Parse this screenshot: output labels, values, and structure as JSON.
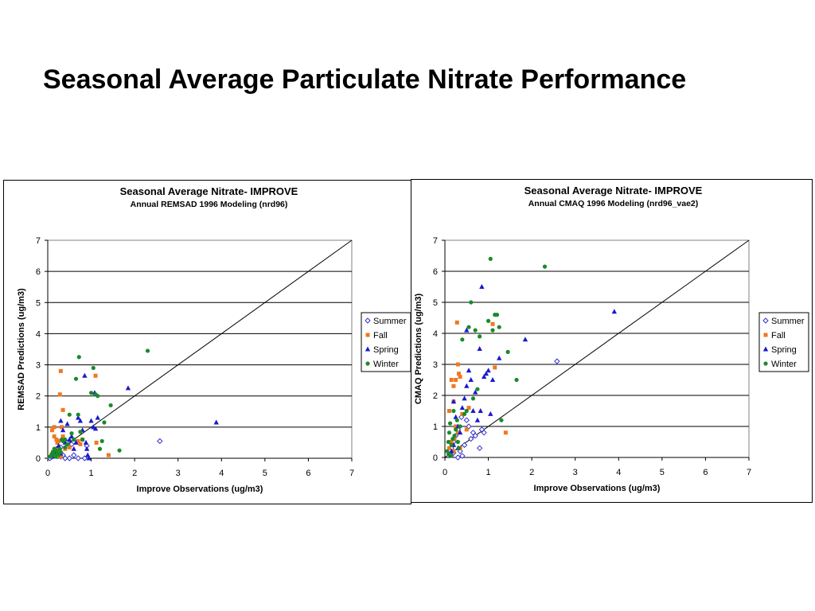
{
  "slide": {
    "title": "Seasonal Average Particulate Nitrate Performance"
  },
  "chart_data": [
    {
      "type": "scatter",
      "title": "Seasonal Average Nitrate- IMPROVE",
      "subtitle": "Annual REMSAD 1996 Modeling (nrd96)",
      "xlabel": "Improve Observations (ug/m3)",
      "ylabel": "REMSAD Predictions (ug/m3)",
      "xlim": [
        0,
        7
      ],
      "ylim": [
        0,
        7
      ],
      "xticks": [
        "0",
        "1",
        "2",
        "3",
        "4",
        "5",
        "6",
        "7"
      ],
      "yticks": [
        "0",
        "1",
        "2",
        "3",
        "4",
        "5",
        "6",
        "7"
      ],
      "grid": "horizontal",
      "legend_position": "right",
      "reference_line": [
        [
          0,
          0
        ],
        [
          7,
          7
        ]
      ],
      "colors": {
        "Summer": "#3333cc",
        "Fall": "#f07820",
        "Spring": "#1a1acc",
        "Winter": "#1a8a2a"
      },
      "series": [
        {
          "name": "Summer",
          "marker": "diamond-open",
          "points": [
            [
              0.05,
              0.0
            ],
            [
              0.1,
              0.05
            ],
            [
              0.15,
              0.1
            ],
            [
              0.2,
              0.15
            ],
            [
              0.25,
              0.2
            ],
            [
              0.3,
              0.05
            ],
            [
              0.35,
              0.1
            ],
            [
              0.4,
              0.0
            ],
            [
              0.5,
              0.0
            ],
            [
              0.6,
              0.1
            ],
            [
              0.7,
              0.0
            ],
            [
              0.85,
              0.0
            ],
            [
              0.9,
              0.4
            ],
            [
              0.3,
              0.35
            ],
            [
              0.45,
              0.5
            ],
            [
              0.55,
              0.45
            ],
            [
              0.2,
              0.3
            ],
            [
              0.12,
              0.08
            ],
            [
              2.58,
              0.55
            ]
          ]
        },
        {
          "name": "Fall",
          "marker": "square",
          "points": [
            [
              0.1,
              0.9
            ],
            [
              0.15,
              1.0
            ],
            [
              0.2,
              0.6
            ],
            [
              0.22,
              0.5
            ],
            [
              0.25,
              0.2
            ],
            [
              0.28,
              2.05
            ],
            [
              0.3,
              2.8
            ],
            [
              0.32,
              1.0
            ],
            [
              0.35,
              1.55
            ],
            [
              0.4,
              0.3
            ],
            [
              0.15,
              0.7
            ],
            [
              0.18,
              0.3
            ],
            [
              0.2,
              0.15
            ],
            [
              0.25,
              0.55
            ],
            [
              0.1,
              0.1
            ],
            [
              0.3,
              0.05
            ],
            [
              0.5,
              0.35
            ],
            [
              0.7,
              0.55
            ],
            [
              0.75,
              0.45
            ],
            [
              0.8,
              0.6
            ],
            [
              1.1,
              2.65
            ],
            [
              1.12,
              0.5
            ],
            [
              1.4,
              0.1
            ],
            [
              0.12,
              0.2
            ],
            [
              0.35,
              0.7
            ]
          ]
        },
        {
          "name": "Spring",
          "marker": "triangle",
          "points": [
            [
              0.3,
              1.2
            ],
            [
              0.35,
              0.9
            ],
            [
              0.4,
              0.5
            ],
            [
              0.45,
              1.1
            ],
            [
              0.5,
              0.6
            ],
            [
              0.55,
              0.7
            ],
            [
              0.6,
              0.3
            ],
            [
              0.65,
              0.5
            ],
            [
              0.7,
              1.3
            ],
            [
              0.75,
              1.2
            ],
            [
              0.8,
              0.9
            ],
            [
              0.85,
              2.65
            ],
            [
              0.88,
              0.5
            ],
            [
              0.9,
              0.3
            ],
            [
              0.92,
              0.1
            ],
            [
              0.95,
              0.0
            ],
            [
              1.0,
              1.2
            ],
            [
              1.05,
              1.0
            ],
            [
              1.08,
              2.1
            ],
            [
              1.1,
              0.95
            ],
            [
              1.15,
              1.3
            ],
            [
              1.85,
              2.25
            ],
            [
              3.88,
              1.15
            ],
            [
              0.25,
              0.4
            ],
            [
              0.2,
              0.2
            ],
            [
              0.3,
              0.15
            ],
            [
              0.15,
              0.05
            ]
          ]
        },
        {
          "name": "Winter",
          "marker": "circle",
          "points": [
            [
              0.05,
              0.05
            ],
            [
              0.08,
              0.1
            ],
            [
              0.1,
              0.15
            ],
            [
              0.12,
              0.2
            ],
            [
              0.15,
              0.1
            ],
            [
              0.18,
              0.05
            ],
            [
              0.2,
              0.25
            ],
            [
              0.22,
              0.15
            ],
            [
              0.25,
              0.1
            ],
            [
              0.28,
              0.3
            ],
            [
              0.3,
              0.2
            ],
            [
              0.32,
              0.6
            ],
            [
              0.35,
              0.55
            ],
            [
              0.4,
              0.6
            ],
            [
              0.45,
              0.45
            ],
            [
              0.5,
              1.4
            ],
            [
              0.55,
              0.8
            ],
            [
              0.6,
              0.6
            ],
            [
              0.65,
              2.55
            ],
            [
              0.7,
              1.4
            ],
            [
              0.72,
              3.25
            ],
            [
              0.75,
              0.85
            ],
            [
              0.8,
              0.6
            ],
            [
              1.0,
              2.1
            ],
            [
              1.05,
              2.9
            ],
            [
              1.1,
              2.05
            ],
            [
              1.15,
              2.0
            ],
            [
              1.2,
              0.3
            ],
            [
              1.25,
              0.55
            ],
            [
              1.3,
              1.15
            ],
            [
              1.45,
              1.7
            ],
            [
              1.65,
              0.25
            ],
            [
              2.3,
              3.45
            ],
            [
              0.15,
              0.3
            ],
            [
              0.4,
              0.35
            ]
          ]
        }
      ]
    },
    {
      "type": "scatter",
      "title": "Seasonal Average Nitrate- IMPROVE",
      "subtitle": "Annual CMAQ 1996 Modeling (nrd96_vae2)",
      "xlabel": "Improve Observations (ug/m3)",
      "ylabel": "CMAQ Predictions (ug/m3)",
      "xlim": [
        0,
        7
      ],
      "ylim": [
        0,
        7
      ],
      "xticks": [
        "0",
        "1",
        "2",
        "3",
        "4",
        "5",
        "6",
        "7"
      ],
      "yticks": [
        "0",
        "1",
        "2",
        "3",
        "4",
        "5",
        "6",
        "7"
      ],
      "grid": "horizontal",
      "legend_position": "right",
      "reference_line": [
        [
          0,
          0
        ],
        [
          7,
          7
        ]
      ],
      "colors": {
        "Summer": "#3333cc",
        "Fall": "#f07820",
        "Spring": "#1a1acc",
        "Winter": "#1a8a2a"
      },
      "series": [
        {
          "name": "Summer",
          "marker": "diamond-open",
          "points": [
            [
              0.1,
              0.1
            ],
            [
              0.15,
              0.3
            ],
            [
              0.2,
              0.5
            ],
            [
              0.25,
              0.7
            ],
            [
              0.3,
              0.9
            ],
            [
              0.35,
              0.2
            ],
            [
              0.4,
              0.05
            ],
            [
              0.45,
              0.4
            ],
            [
              0.5,
              1.2
            ],
            [
              0.55,
              1.0
            ],
            [
              0.6,
              0.6
            ],
            [
              0.65,
              0.8
            ],
            [
              0.7,
              0.7
            ],
            [
              0.8,
              0.3
            ],
            [
              0.85,
              0.9
            ],
            [
              0.9,
              0.8
            ],
            [
              2.58,
              3.1
            ],
            [
              0.2,
              0.15
            ],
            [
              0.3,
              0.0
            ],
            [
              0.38,
              1.3
            ]
          ]
        },
        {
          "name": "Fall",
          "marker": "square",
          "points": [
            [
              0.1,
              1.5
            ],
            [
              0.15,
              2.5
            ],
            [
              0.2,
              2.3
            ],
            [
              0.22,
              0.6
            ],
            [
              0.25,
              2.5
            ],
            [
              0.28,
              4.35
            ],
            [
              0.3,
              3.0
            ],
            [
              0.32,
              2.7
            ],
            [
              0.35,
              2.6
            ],
            [
              0.4,
              1.4
            ],
            [
              0.2,
              1.8
            ],
            [
              0.25,
              1.0
            ],
            [
              0.15,
              0.5
            ],
            [
              0.3,
              0.8
            ],
            [
              0.35,
              0.3
            ],
            [
              0.5,
              0.9
            ],
            [
              0.55,
              1.6
            ],
            [
              1.1,
              4.3
            ],
            [
              1.15,
              2.9
            ],
            [
              1.4,
              0.8
            ],
            [
              0.1,
              0.3
            ],
            [
              0.2,
              0.2
            ]
          ]
        },
        {
          "name": "Spring",
          "marker": "triangle",
          "points": [
            [
              0.2,
              1.8
            ],
            [
              0.25,
              1.3
            ],
            [
              0.3,
              1.0
            ],
            [
              0.35,
              0.8
            ],
            [
              0.4,
              1.6
            ],
            [
              0.45,
              1.9
            ],
            [
              0.5,
              2.3
            ],
            [
              0.5,
              4.1
            ],
            [
              0.55,
              2.8
            ],
            [
              0.6,
              2.5
            ],
            [
              0.65,
              1.5
            ],
            [
              0.7,
              2.1
            ],
            [
              0.75,
              1.2
            ],
            [
              0.8,
              3.5
            ],
            [
              0.82,
              1.5
            ],
            [
              0.85,
              5.5
            ],
            [
              0.9,
              2.6
            ],
            [
              0.95,
              2.7
            ],
            [
              1.0,
              2.8
            ],
            [
              1.05,
              1.4
            ],
            [
              1.1,
              2.5
            ],
            [
              1.25,
              3.2
            ],
            [
              1.85,
              3.8
            ],
            [
              3.9,
              4.7
            ],
            [
              0.2,
              0.4
            ],
            [
              0.3,
              0.3
            ],
            [
              0.15,
              0.2
            ]
          ]
        },
        {
          "name": "Winter",
          "marker": "circle",
          "points": [
            [
              0.05,
              0.2
            ],
            [
              0.08,
              0.5
            ],
            [
              0.1,
              0.8
            ],
            [
              0.12,
              1.1
            ],
            [
              0.15,
              0.4
            ],
            [
              0.18,
              0.6
            ],
            [
              0.2,
              1.5
            ],
            [
              0.22,
              0.7
            ],
            [
              0.25,
              0.9
            ],
            [
              0.28,
              1.2
            ],
            [
              0.3,
              0.5
            ],
            [
              0.32,
              0.3
            ],
            [
              0.35,
              1.0
            ],
            [
              0.4,
              3.8
            ],
            [
              0.45,
              1.4
            ],
            [
              0.5,
              1.5
            ],
            [
              0.55,
              4.2
            ],
            [
              0.6,
              5.0
            ],
            [
              0.65,
              1.9
            ],
            [
              0.7,
              4.1
            ],
            [
              0.75,
              2.2
            ],
            [
              0.8,
              3.9
            ],
            [
              1.0,
              4.4
            ],
            [
              1.05,
              6.4
            ],
            [
              1.1,
              4.1
            ],
            [
              1.15,
              4.6
            ],
            [
              1.2,
              4.6
            ],
            [
              1.25,
              4.2
            ],
            [
              1.3,
              1.2
            ],
            [
              1.45,
              3.4
            ],
            [
              1.65,
              2.5
            ],
            [
              2.3,
              6.15
            ],
            [
              0.1,
              0.1
            ],
            [
              0.15,
              0.05
            ]
          ]
        }
      ]
    }
  ]
}
